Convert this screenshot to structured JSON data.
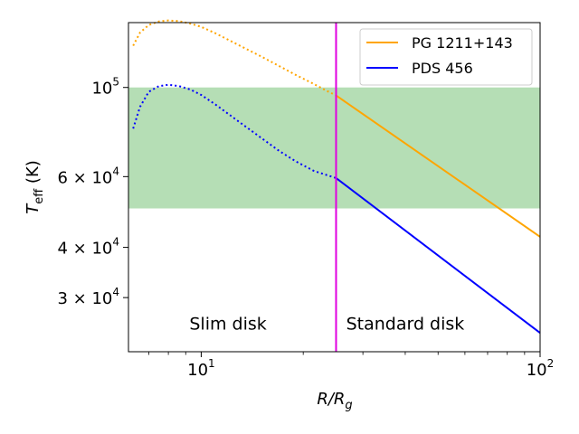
{
  "chart_data": {
    "type": "line",
    "xscale": "log",
    "yscale": "log",
    "xlim": [
      6.1,
      100
    ],
    "ylim": [
      22000,
      145000
    ],
    "xlabel_main": "R/R",
    "xlabel_sub": "g",
    "ylabel_main": "T",
    "ylabel_sub": "eff",
    "ylabel_unit": " (K)",
    "x_ticks": [
      {
        "value": 10,
        "base": "10",
        "exp": "1"
      },
      {
        "value": 100,
        "base": "10",
        "exp": "2"
      }
    ],
    "y_ticks": [
      {
        "value": 30000,
        "mant": "3 × 10",
        "exp": "4"
      },
      {
        "value": 40000,
        "mant": "4 × 10",
        "exp": "4"
      },
      {
        "value": 60000,
        "mant": "6 × 10",
        "exp": "4"
      },
      {
        "value": 100000,
        "mant": "10",
        "exp": "5"
      }
    ],
    "band": {
      "y_from": 50000,
      "y_to": 100000,
      "color": "#2ca02c"
    },
    "vline": {
      "x": 25,
      "color": "#e000e0"
    },
    "annotations": [
      {
        "text": "Slim disk",
        "x": 12,
        "y": 25000
      },
      {
        "text": "Standard disk",
        "x": 40,
        "y": 25000
      }
    ],
    "legend_position": "top-right",
    "series": [
      {
        "name": "PG 1211+143",
        "color": "#ffa500",
        "slim": {
          "x": [
            6.3,
            6.6,
            7.0,
            7.5,
            8.0,
            8.6,
            9.3,
            10,
            11,
            12,
            13.5,
            15,
            17,
            19,
            21.5,
            23.5,
            25
          ],
          "y": [
            127000,
            137000,
            143000,
            146000,
            146800,
            146200,
            144200,
            141500,
            136500,
            131500,
            125000,
            119500,
            113000,
            107500,
            102000,
            98000,
            95500
          ]
        },
        "standard": {
          "x": [
            25,
            100
          ],
          "y": [
            95500,
            42500
          ]
        }
      },
      {
        "name": "PDS 456",
        "color": "#0000ff",
        "slim": {
          "x": [
            6.3,
            6.6,
            7.0,
            7.5,
            8.0,
            8.6,
            9.3,
            10,
            11,
            12,
            13.5,
            15,
            17,
            19,
            21.5,
            23.5,
            25
          ],
          "y": [
            79000,
            89500,
            97500,
            100800,
            101500,
            100800,
            98800,
            95800,
            90800,
            86000,
            80000,
            75000,
            69500,
            65500,
            62000,
            60500,
            59500
          ]
        },
        "standard": {
          "x": [
            25,
            100
          ],
          "y": [
            59500,
            24500
          ]
        }
      }
    ]
  }
}
